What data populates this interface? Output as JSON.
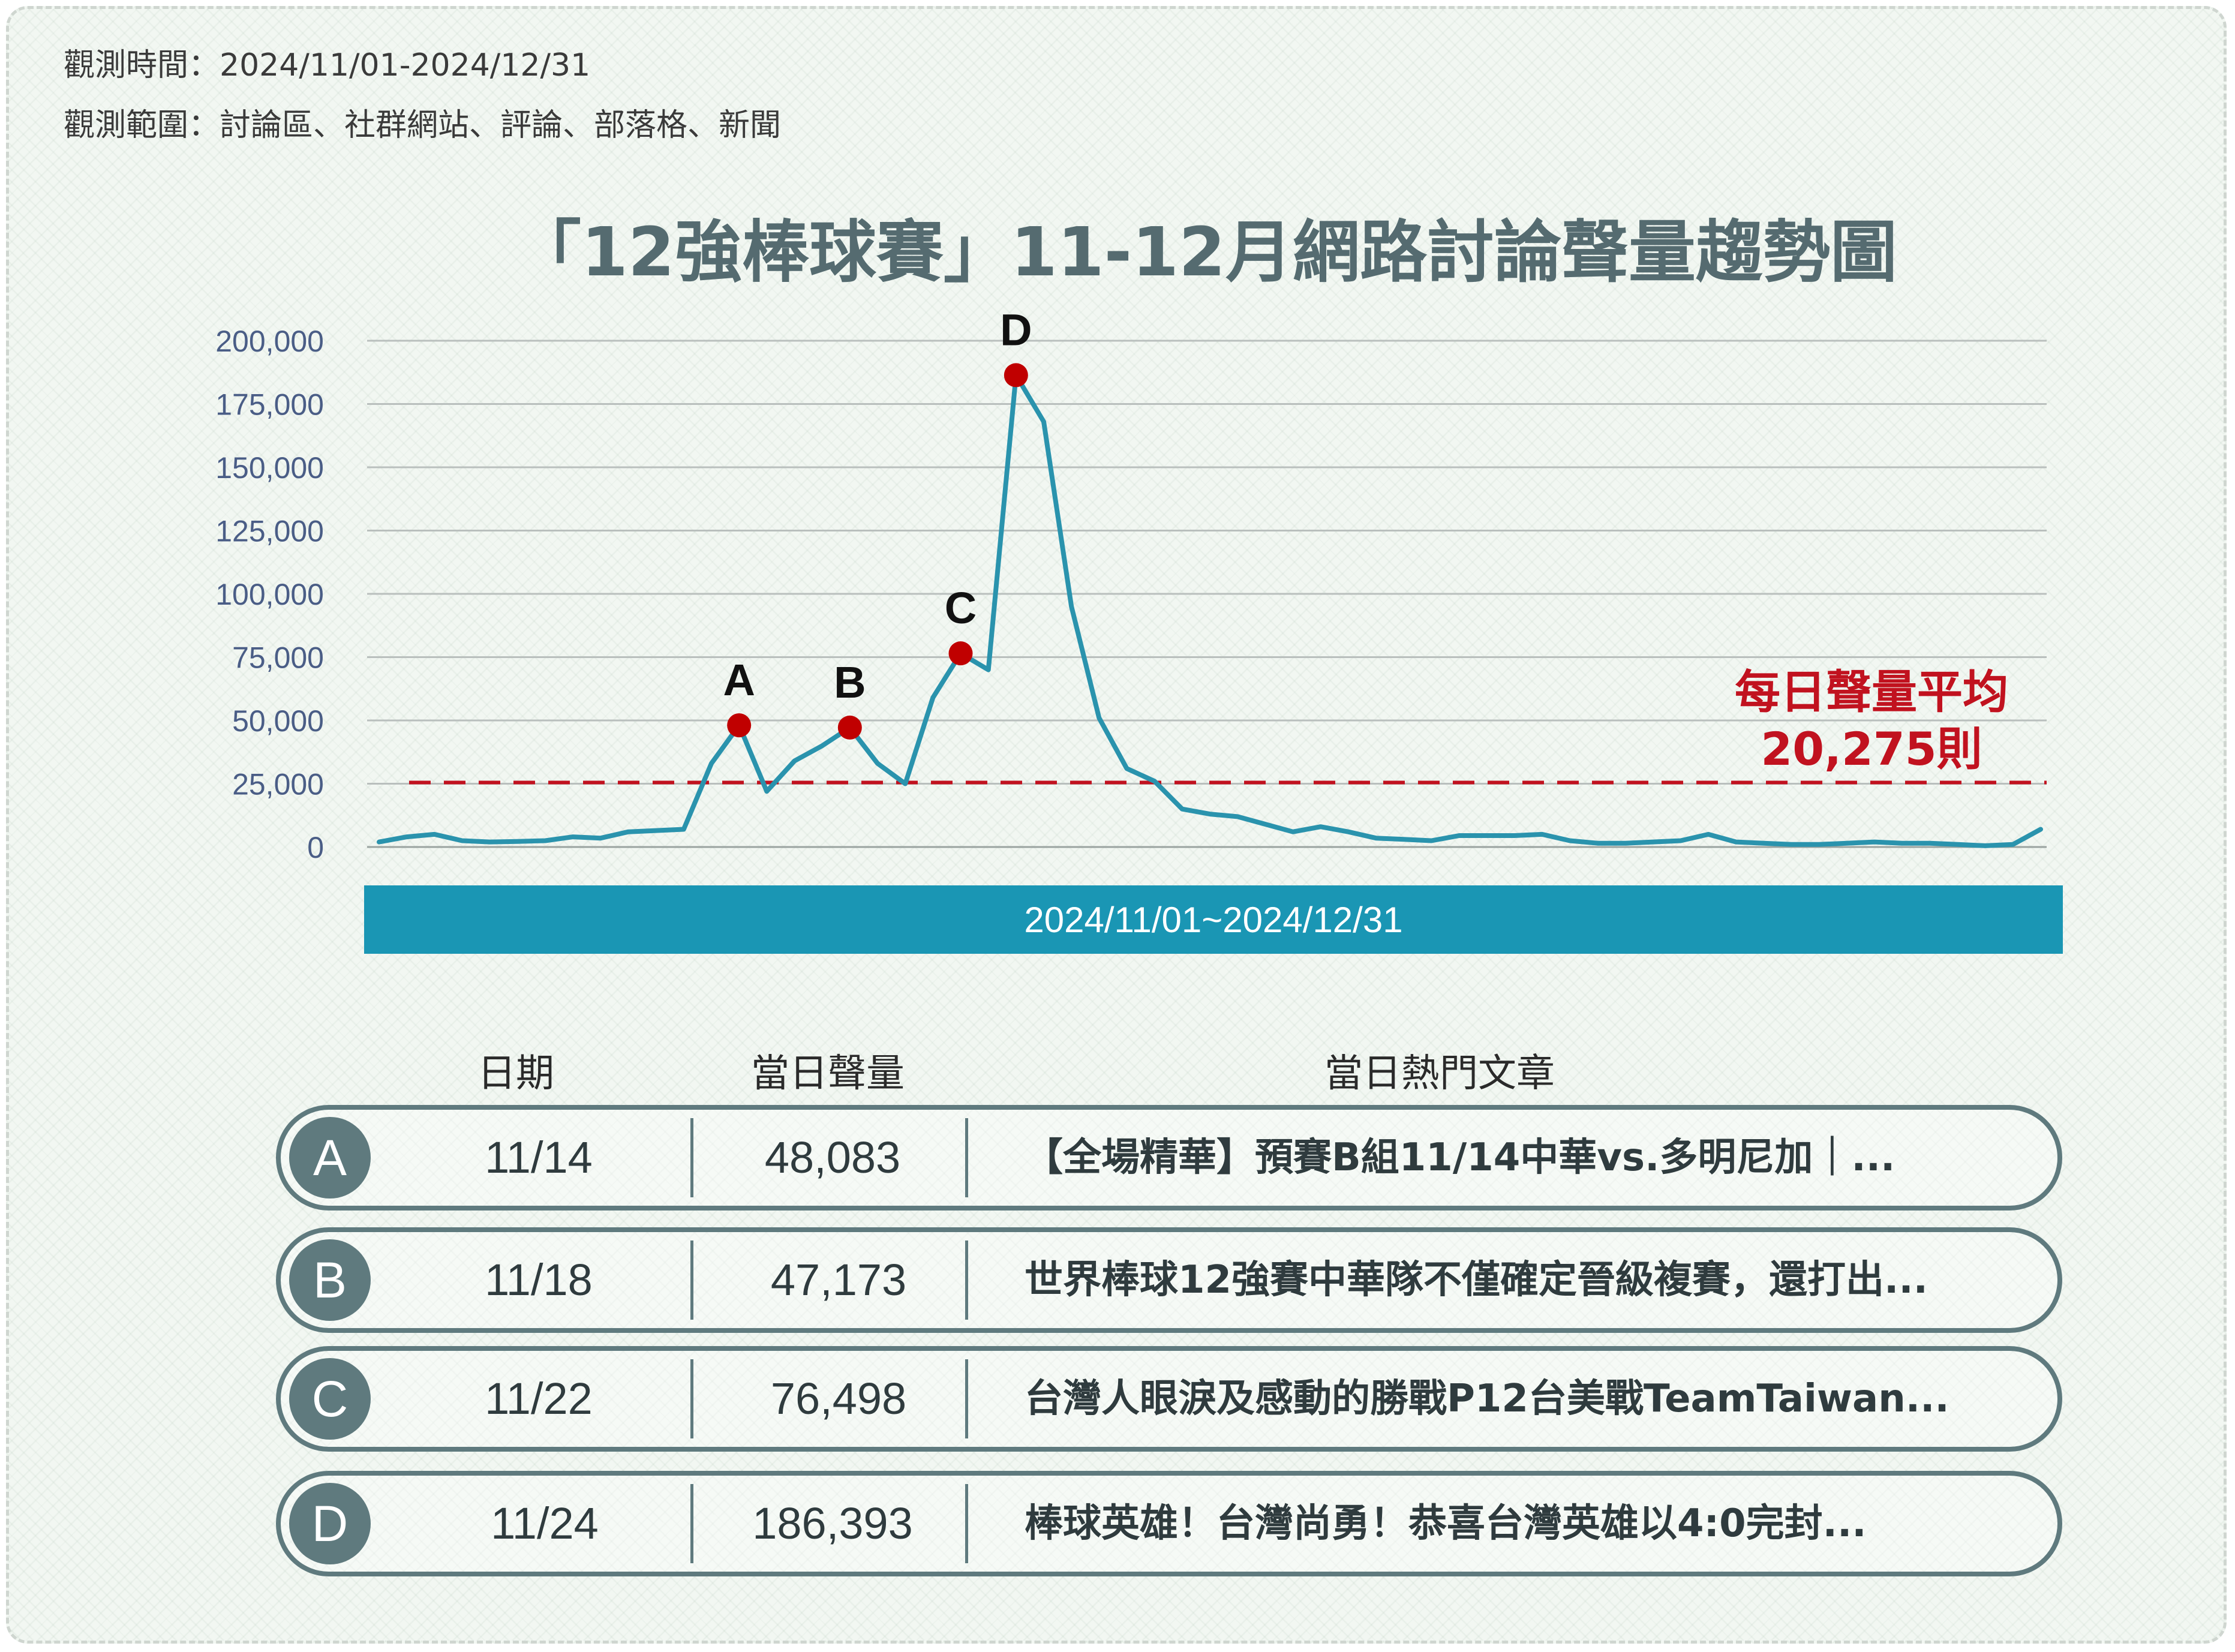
{
  "meta": {
    "period": "觀測時間：2024/11/01-2024/12/31",
    "scope": "觀測範圍：討論區、社群網站、評論、部落格、新聞"
  },
  "title": "「12強棒球賽」11-12月網路討論聲量趨勢圖",
  "colors": {
    "line": "#2a93ad",
    "peak": "#c00000",
    "average": "#c1121f",
    "bar": "#1a96b4",
    "table_border": "#5f7a7e"
  },
  "chart_data": {
    "type": "line",
    "title": "「12強棒球賽」11-12月網路討論聲量趨勢圖",
    "x_range_label": "2024/11/01~2024/12/31",
    "ylim": [
      0,
      200000
    ],
    "yticks": [
      "200,000",
      "175,000",
      "150,000",
      "125,000",
      "100,000",
      "75,000",
      "50,000",
      "25,000",
      "0"
    ],
    "ytick_values": [
      200000,
      175000,
      150000,
      125000,
      100000,
      75000,
      50000,
      25000,
      0
    ],
    "grid": true,
    "x": [
      "11/01",
      "11/02",
      "11/03",
      "11/04",
      "11/05",
      "11/06",
      "11/07",
      "11/08",
      "11/09",
      "11/10",
      "11/11",
      "11/12",
      "11/13",
      "11/14",
      "11/15",
      "11/16",
      "11/17",
      "11/18",
      "11/19",
      "11/20",
      "11/21",
      "11/22",
      "11/23",
      "11/24",
      "11/25",
      "11/26",
      "11/27",
      "11/28",
      "11/29",
      "11/30",
      "12/01",
      "12/02",
      "12/03",
      "12/04",
      "12/05",
      "12/06",
      "12/07",
      "12/08",
      "12/09",
      "12/10",
      "12/11",
      "12/12",
      "12/13",
      "12/14",
      "12/15",
      "12/16",
      "12/17",
      "12/18",
      "12/19",
      "12/20",
      "12/21",
      "12/22",
      "12/23",
      "12/24",
      "12/25",
      "12/26",
      "12/27",
      "12/28",
      "12/29",
      "12/30",
      "12/31"
    ],
    "values": [
      2000,
      4000,
      5000,
      2500,
      2000,
      2200,
      2500,
      4000,
      3500,
      6000,
      6500,
      7000,
      33000,
      48083,
      22000,
      34000,
      40000,
      47173,
      33000,
      25000,
      59000,
      76498,
      70000,
      186393,
      168000,
      95000,
      51000,
      31000,
      26000,
      15000,
      13000,
      12000,
      9000,
      6000,
      8000,
      6000,
      3500,
      3000,
      2500,
      4500,
      4500,
      4500,
      5000,
      2500,
      1500,
      1500,
      2000,
      2500,
      5000,
      2000,
      1500,
      1000,
      1000,
      1500,
      2000,
      1500,
      1500,
      1000,
      500,
      1000,
      7000
    ],
    "average": {
      "value": 20275,
      "label_line1": "每日聲量平均",
      "label_line2": "20,275則"
    },
    "peaks": [
      {
        "letter": "A",
        "date": "11/14",
        "value": 48083
      },
      {
        "letter": "B",
        "date": "11/18",
        "value": 47173
      },
      {
        "letter": "C",
        "date": "11/22",
        "value": 76498
      },
      {
        "letter": "D",
        "date": "11/24",
        "value": 186393
      }
    ]
  },
  "table": {
    "headers": {
      "date": "日期",
      "volume": "當日聲量",
      "article": "當日熱門文章"
    },
    "rows": [
      {
        "letter": "A",
        "date": "11/14",
        "volume": "48,083",
        "article": "【全場精華】預賽B組11/14中華vs.多明尼加｜..."
      },
      {
        "letter": "B",
        "date": "11/18",
        "volume": "47,173",
        "article": "世界棒球12強賽中華隊不僅確定晉級複賽，還打出..."
      },
      {
        "letter": "C",
        "date": "11/22",
        "volume": "76,498",
        "article": "台灣人眼淚及感動的勝戰P12台美戰TeamTaiwan..."
      },
      {
        "letter": "D",
        "date": "11/24",
        "volume": "186,393",
        "article": "棒球英雄！台灣尚勇！恭喜台灣英雄以4:0完封..."
      }
    ]
  }
}
